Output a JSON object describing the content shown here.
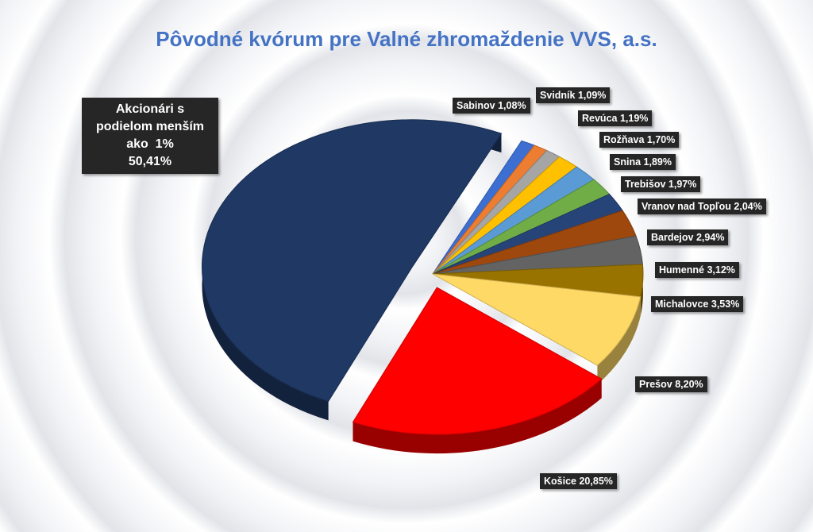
{
  "chart_data": {
    "type": "pie",
    "title": "Pôvodné kvórum pre Valné zhromaždenie VVS, a.s.",
    "categories": [
      "Sabinov",
      "Svidník",
      "Revúca",
      "Rožňava",
      "Snina",
      "Trebišov",
      "Vranov nad Topľou",
      "Bardejov",
      "Humenné",
      "Michalovce",
      "Prešov",
      "Košice",
      "Akcionári s podielom menším ako  1%"
    ],
    "values": [
      1.08,
      1.09,
      1.19,
      1.7,
      1.89,
      1.97,
      2.04,
      2.94,
      3.12,
      3.53,
      8.2,
      20.85,
      50.41
    ],
    "value_labels": [
      "1,08%",
      "1,09%",
      "1,19%",
      "1,70%",
      "1,89%",
      "1,97%",
      "2,04%",
      "2,94%",
      "3,12%",
      "3,53%",
      "8,20%",
      "20,85%",
      "50,41%"
    ],
    "colors": [
      "#3c6fd1",
      "#ed7d31",
      "#a5a5a5",
      "#ffc000",
      "#5b9bd5",
      "#70ad47",
      "#264478",
      "#9e480e",
      "#636363",
      "#997300",
      "#ffd966",
      "#ff0000",
      "#1f3864"
    ]
  }
}
